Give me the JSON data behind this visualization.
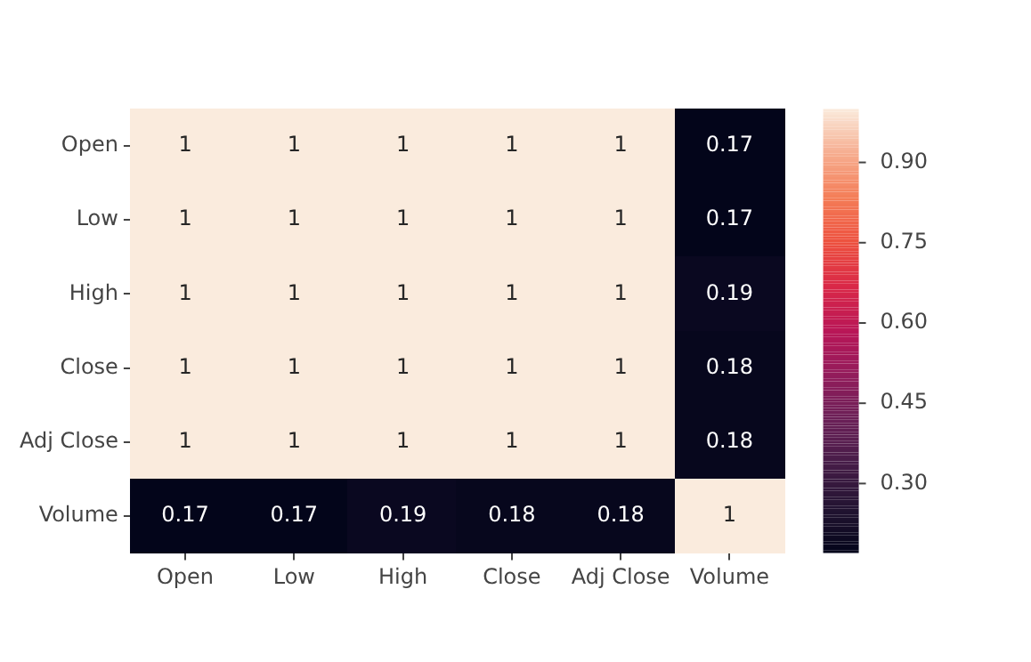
{
  "chart_data": {
    "type": "heatmap",
    "categories": [
      "Open",
      "Low",
      "High",
      "Close",
      "Adj Close",
      "Volume"
    ],
    "y_categories": [
      "Open",
      "Low",
      "High",
      "Close",
      "Adj Close",
      "Volume"
    ],
    "cells": [
      [
        1,
        1,
        1,
        1,
        1,
        0.17
      ],
      [
        1,
        1,
        1,
        1,
        1,
        0.17
      ],
      [
        1,
        1,
        1,
        1,
        1,
        0.19
      ],
      [
        1,
        1,
        1,
        1,
        1,
        0.18
      ],
      [
        1,
        1,
        1,
        1,
        1,
        0.18
      ],
      [
        0.17,
        0.17,
        0.19,
        0.18,
        0.18,
        1
      ]
    ],
    "clim": [
      0.17,
      1
    ],
    "cticks": [
      {
        "value": 0.3,
        "label": "0.30"
      },
      {
        "value": 0.45,
        "label": "0.45"
      },
      {
        "value": 0.6,
        "label": "0.60"
      },
      {
        "value": 0.75,
        "label": "0.75"
      },
      {
        "value": 0.9,
        "label": "0.90"
      }
    ],
    "data_labels": true
  }
}
